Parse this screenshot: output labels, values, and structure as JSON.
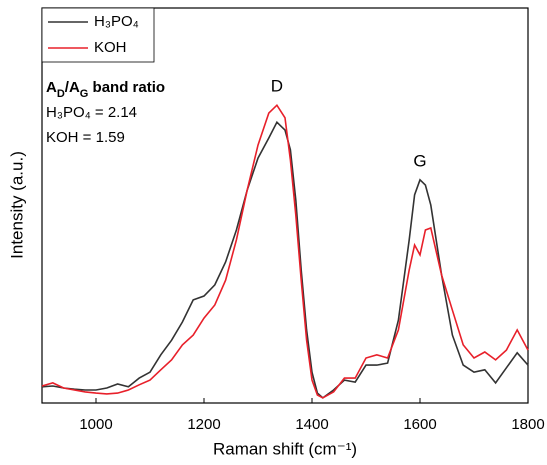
{
  "chart_data": {
    "type": "line",
    "xlabel": "Raman shift (cm⁻¹)",
    "ylabel": "Intensity (a.u.)",
    "xlim": [
      900,
      1800
    ],
    "xticks": [
      1000,
      1200,
      1400,
      1600,
      1800
    ],
    "ylim": [
      0,
      100
    ],
    "legend": "top-left",
    "annotations": {
      "ratio_title": [
        {
          "text": "A"
        },
        {
          "text": "D",
          "sub": true
        },
        {
          "text": "/A"
        },
        {
          "text": "G",
          "sub": true
        },
        {
          "text": " band ratio"
        }
      ],
      "ratios": [
        "H₃PO₄ = 2.14",
        "KOH = 1.59"
      ],
      "peaks": [
        {
          "text": "D",
          "x": 1335,
          "y": 80
        },
        {
          "text": "G",
          "x": 1600,
          "y": 61
        }
      ]
    },
    "x": [
      900,
      920,
      940,
      960,
      980,
      1000,
      1020,
      1040,
      1060,
      1080,
      1100,
      1120,
      1140,
      1160,
      1180,
      1200,
      1220,
      1240,
      1260,
      1280,
      1300,
      1320,
      1335,
      1350,
      1360,
      1370,
      1380,
      1390,
      1400,
      1410,
      1420,
      1440,
      1460,
      1480,
      1500,
      1520,
      1540,
      1560,
      1580,
      1590,
      1600,
      1610,
      1620,
      1640,
      1660,
      1680,
      1700,
      1720,
      1740,
      1760,
      1780,
      1800
    ],
    "series": [
      {
        "name": "H₃PO₄",
        "color": "#333333",
        "values": [
          4.1,
          4.3,
          3.8,
          3.5,
          3.3,
          3.3,
          3.8,
          4.8,
          4.1,
          6.3,
          7.8,
          12.2,
          15.9,
          20.5,
          26.1,
          27.1,
          29.9,
          35.7,
          43.8,
          53.9,
          62.0,
          67.1,
          71.1,
          69.1,
          64.1,
          51.4,
          33.7,
          18.5,
          7.8,
          2.5,
          1.3,
          3.3,
          5.8,
          5.3,
          9.6,
          9.6,
          10.1,
          21.0,
          41.3,
          52.7,
          56.5,
          55.2,
          50.1,
          32.4,
          17.2,
          9.6,
          7.8,
          8.4,
          5.1,
          8.9,
          12.7,
          9.6
        ]
      },
      {
        "name": "KOH",
        "color": "#e8202a",
        "values": [
          4.3,
          5.1,
          3.8,
          3.3,
          2.8,
          2.5,
          2.3,
          2.5,
          3.3,
          4.6,
          5.8,
          8.4,
          10.9,
          14.7,
          17.2,
          21.5,
          24.8,
          31.1,
          41.3,
          53.9,
          65.3,
          73.4,
          75.4,
          72.2,
          61.5,
          47.6,
          31.1,
          15.9,
          5.8,
          2.0,
          1.3,
          2.8,
          6.3,
          6.3,
          11.4,
          12.2,
          11.4,
          18.5,
          33.7,
          40.0,
          37.5,
          43.8,
          44.3,
          32.4,
          23.5,
          14.7,
          11.4,
          12.9,
          10.9,
          13.4,
          18.5,
          13.4
        ]
      }
    ]
  }
}
